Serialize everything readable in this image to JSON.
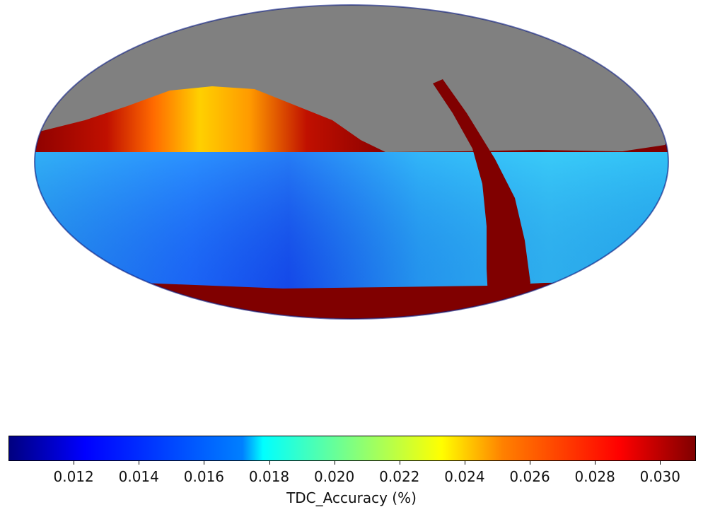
{
  "colorbar": {
    "label": "TDC_Accuracy (%)",
    "min": 0.01,
    "max": 0.0311,
    "ticks": [
      "0.012",
      "0.014",
      "0.016",
      "0.018",
      "0.020",
      "0.022",
      "0.024",
      "0.026",
      "0.028",
      "0.030"
    ],
    "colormap": "jet"
  },
  "map": {
    "projection": "mollweide",
    "background_color": "#808080",
    "saturated_color": "#800000",
    "regions": [
      {
        "name": "no-data",
        "color": "#808080"
      },
      {
        "name": "north-high-accuracy-band",
        "value_range": [
          0.024,
          0.031
        ]
      },
      {
        "name": "southern-field",
        "value_range": [
          0.012,
          0.018
        ]
      },
      {
        "name": "saturated-stripe",
        "color": "#800000"
      },
      {
        "name": "southern-edge-band",
        "color": "#800000"
      }
    ]
  }
}
